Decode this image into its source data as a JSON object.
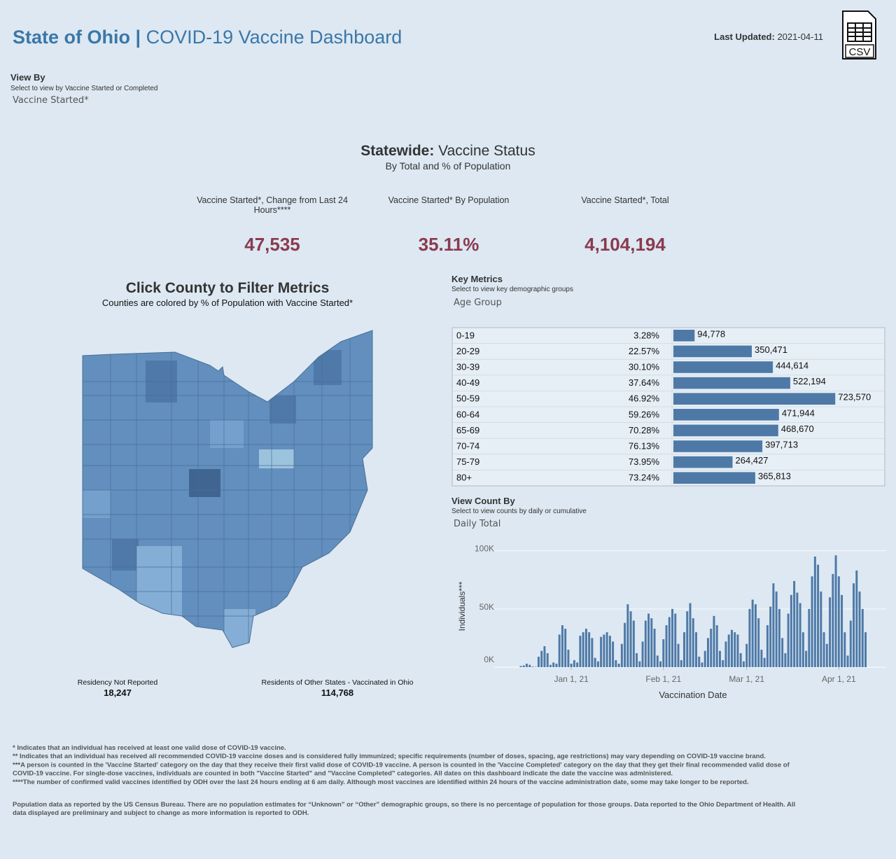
{
  "header": {
    "title_bold": "State of Ohio |",
    "title_rest": "COVID-19 Vaccine Dashboard",
    "updated_label": "Last Updated:",
    "updated_value": "2021-04-11",
    "csv_icon": "CSV"
  },
  "view_by": {
    "title": "View By",
    "hint": "Select to view by Vaccine Started or Completed",
    "selection": "Vaccine Started*"
  },
  "statewide": {
    "title_bold": "Statewide:",
    "title_rest": "Vaccine Status",
    "subtitle": "By Total and % of Population",
    "kpis": [
      {
        "label": [
          "Vaccine Started*, Change from Last 24",
          "Hours****"
        ],
        "value": "47,535"
      },
      {
        "label": [
          "Vaccine Started* By Population"
        ],
        "value": "35.11%"
      },
      {
        "label": [
          "Vaccine Started*, Total"
        ],
        "value": "4,104,194"
      }
    ]
  },
  "map": {
    "title": "Click County to Filter Metrics",
    "subtitle": "Counties are colored by % of Population with Vaccine Started*",
    "notes": [
      {
        "label": "Residency Not Reported",
        "value": "18,247"
      },
      {
        "label": "Residents of Other States - Vaccinated in Ohio",
        "value": "114,768"
      }
    ]
  },
  "key_metrics": {
    "title": "Key Metrics",
    "hint": "Select to view key demographic groups",
    "selection": "Age Group"
  },
  "view_count": {
    "title": "View Count By",
    "hint": "Select to view counts by daily or cumulative",
    "selection": "Daily Total"
  },
  "chart_data": [
    {
      "type": "hbar",
      "categories": [
        "0-19",
        "20-29",
        "30-39",
        "40-49",
        "50-59",
        "60-64",
        "65-69",
        "70-74",
        "75-79",
        "80+"
      ],
      "percent": [
        "3.28%",
        "22.57%",
        "30.10%",
        "37.64%",
        "46.92%",
        "59.26%",
        "70.28%",
        "76.13%",
        "73.95%",
        "73.24%"
      ],
      "values": [
        94778,
        350471,
        444614,
        522194,
        723570,
        471944,
        468670,
        397713,
        264427,
        365813
      ],
      "value_labels": [
        "94,778",
        "350,471",
        "444,614",
        "522,194",
        "723,570",
        "471,944",
        "468,670",
        "397,713",
        "264,427",
        "365,813"
      ],
      "xlim": [
        0,
        945000
      ],
      "color": "#4e79a7"
    },
    {
      "type": "bar",
      "x_label": "Vaccination Date",
      "y_label": "Individuals***",
      "color": "#4e79a7",
      "x": [
        "2020-12-15",
        "2020-12-16",
        "2020-12-17",
        "2020-12-18",
        "2020-12-19",
        "2020-12-20",
        "2020-12-21",
        "2020-12-22",
        "2020-12-23",
        "2020-12-24",
        "2020-12-25",
        "2020-12-26",
        "2020-12-27",
        "2020-12-28",
        "2020-12-29",
        "2020-12-30",
        "2020-12-31",
        "2021-01-01",
        "2021-01-02",
        "2021-01-03",
        "2021-01-04",
        "2021-01-05",
        "2021-01-06",
        "2021-01-07",
        "2021-01-08",
        "2021-01-09",
        "2021-01-10",
        "2021-01-11",
        "2021-01-12",
        "2021-01-13",
        "2021-01-14",
        "2021-01-15",
        "2021-01-16",
        "2021-01-17",
        "2021-01-18",
        "2021-01-19",
        "2021-01-20",
        "2021-01-21",
        "2021-01-22",
        "2021-01-23",
        "2021-01-24",
        "2021-01-25",
        "2021-01-26",
        "2021-01-27",
        "2021-01-28",
        "2021-01-29",
        "2021-01-30",
        "2021-01-31",
        "2021-02-01",
        "2021-02-02",
        "2021-02-03",
        "2021-02-04",
        "2021-02-05",
        "2021-02-06",
        "2021-02-07",
        "2021-02-08",
        "2021-02-09",
        "2021-02-10",
        "2021-02-11",
        "2021-02-12",
        "2021-02-13",
        "2021-02-14",
        "2021-02-15",
        "2021-02-16",
        "2021-02-17",
        "2021-02-18",
        "2021-02-19",
        "2021-02-20",
        "2021-02-21",
        "2021-02-22",
        "2021-02-23",
        "2021-02-24",
        "2021-02-25",
        "2021-02-26",
        "2021-02-27",
        "2021-02-28",
        "2021-03-01",
        "2021-03-02",
        "2021-03-03",
        "2021-03-04",
        "2021-03-05",
        "2021-03-06",
        "2021-03-07",
        "2021-03-08",
        "2021-03-09",
        "2021-03-10",
        "2021-03-11",
        "2021-03-12",
        "2021-03-13",
        "2021-03-14",
        "2021-03-15",
        "2021-03-16",
        "2021-03-17",
        "2021-03-18",
        "2021-03-19",
        "2021-03-20",
        "2021-03-21",
        "2021-03-22",
        "2021-03-23",
        "2021-03-24",
        "2021-03-25",
        "2021-03-26",
        "2021-03-27",
        "2021-03-28",
        "2021-03-29",
        "2021-03-30",
        "2021-03-31",
        "2021-04-01",
        "2021-04-02",
        "2021-04-03",
        "2021-04-04",
        "2021-04-05",
        "2021-04-06",
        "2021-04-07",
        "2021-04-08",
        "2021-04-09",
        "2021-04-10"
      ],
      "values": [
        1000,
        1500,
        3000,
        2000,
        500,
        300,
        9000,
        14000,
        18000,
        12000,
        2000,
        4000,
        3000,
        28000,
        36000,
        33000,
        15000,
        3000,
        6000,
        4000,
        27000,
        30000,
        33000,
        30000,
        25000,
        8000,
        5000,
        26000,
        28000,
        30000,
        27000,
        22000,
        6000,
        3000,
        20000,
        38000,
        54000,
        48000,
        40000,
        12000,
        5000,
        22000,
        40000,
        46000,
        42000,
        33000,
        10000,
        5000,
        24000,
        36000,
        43000,
        50000,
        46000,
        20000,
        6000,
        30000,
        48000,
        55000,
        42000,
        30000,
        9000,
        4000,
        14000,
        25000,
        33000,
        44000,
        36000,
        14000,
        6000,
        22000,
        28000,
        32000,
        30000,
        28000,
        12000,
        5000,
        20000,
        50000,
        58000,
        54000,
        42000,
        15000,
        8000,
        36000,
        52000,
        72000,
        65000,
        50000,
        25000,
        12000,
        46000,
        62000,
        74000,
        64000,
        55000,
        30000,
        14000,
        50000,
        78000,
        95000,
        88000,
        65000,
        30000,
        20000,
        60000,
        80000,
        96000,
        78000,
        62000,
        30000,
        10000,
        40000,
        72000,
        83000,
        65000,
        50000,
        30000
      ],
      "xlim": [
        "2020-12-07",
        "2021-04-16"
      ],
      "xticks": [
        {
          "value": "2021-01-01",
          "label": "Jan 1, 21"
        },
        {
          "value": "2021-02-01",
          "label": "Feb 1, 21"
        },
        {
          "value": "2021-03-01",
          "label": "Mar 1, 21"
        },
        {
          "value": "2021-04-01",
          "label": "Apr 1, 21"
        }
      ],
      "ylim": [
        0,
        104000
      ],
      "yticks": [
        {
          "value": 0,
          "label": "0K"
        },
        {
          "value": 50000,
          "label": "50K"
        },
        {
          "value": 100000,
          "label": "100K"
        }
      ],
      "grid": true
    }
  ],
  "footnotes": [
    "* Indicates that an individual has received at least one valid dose of COVID-19 vaccine.",
    "** Indicates that an individual has received all recommended COVID-19 vaccine doses and is considered fully immunized; specific requirements (number of doses, spacing, age restrictions) may vary depending on COVID-19 vaccine brand.",
    "***A person is counted in the 'Vaccine Started' category on the day that they receive their first valid dose of COVID-19 vaccine.  A person is counted in the 'Vaccine Completed' category on the day that they get their final recommended valid dose of",
    "COVID-19 vaccine. For single-dose vaccines, individuals are counted in both \"Vaccine Started\" and \"Vaccine Completed\" categories. All dates on this dashboard indicate the date the vaccine was administered.",
    "****The number of confirmed valid vaccines identified by ODH over the last 24 hours ending at 6 am daily. Although most vaccines are identified within 24 hours of the vaccine administration date, some may take longer to be reported."
  ],
  "population_note": [
    "Population data as reported by the US Census Bureau. There are no population estimates for “Unknown” or “Other” demographic groups, so there is no percentage of population for those groups.  Data reported to the Ohio Department of Health.  All",
    "data displayed are preliminary and subject to change as more information is reported to ODH."
  ]
}
